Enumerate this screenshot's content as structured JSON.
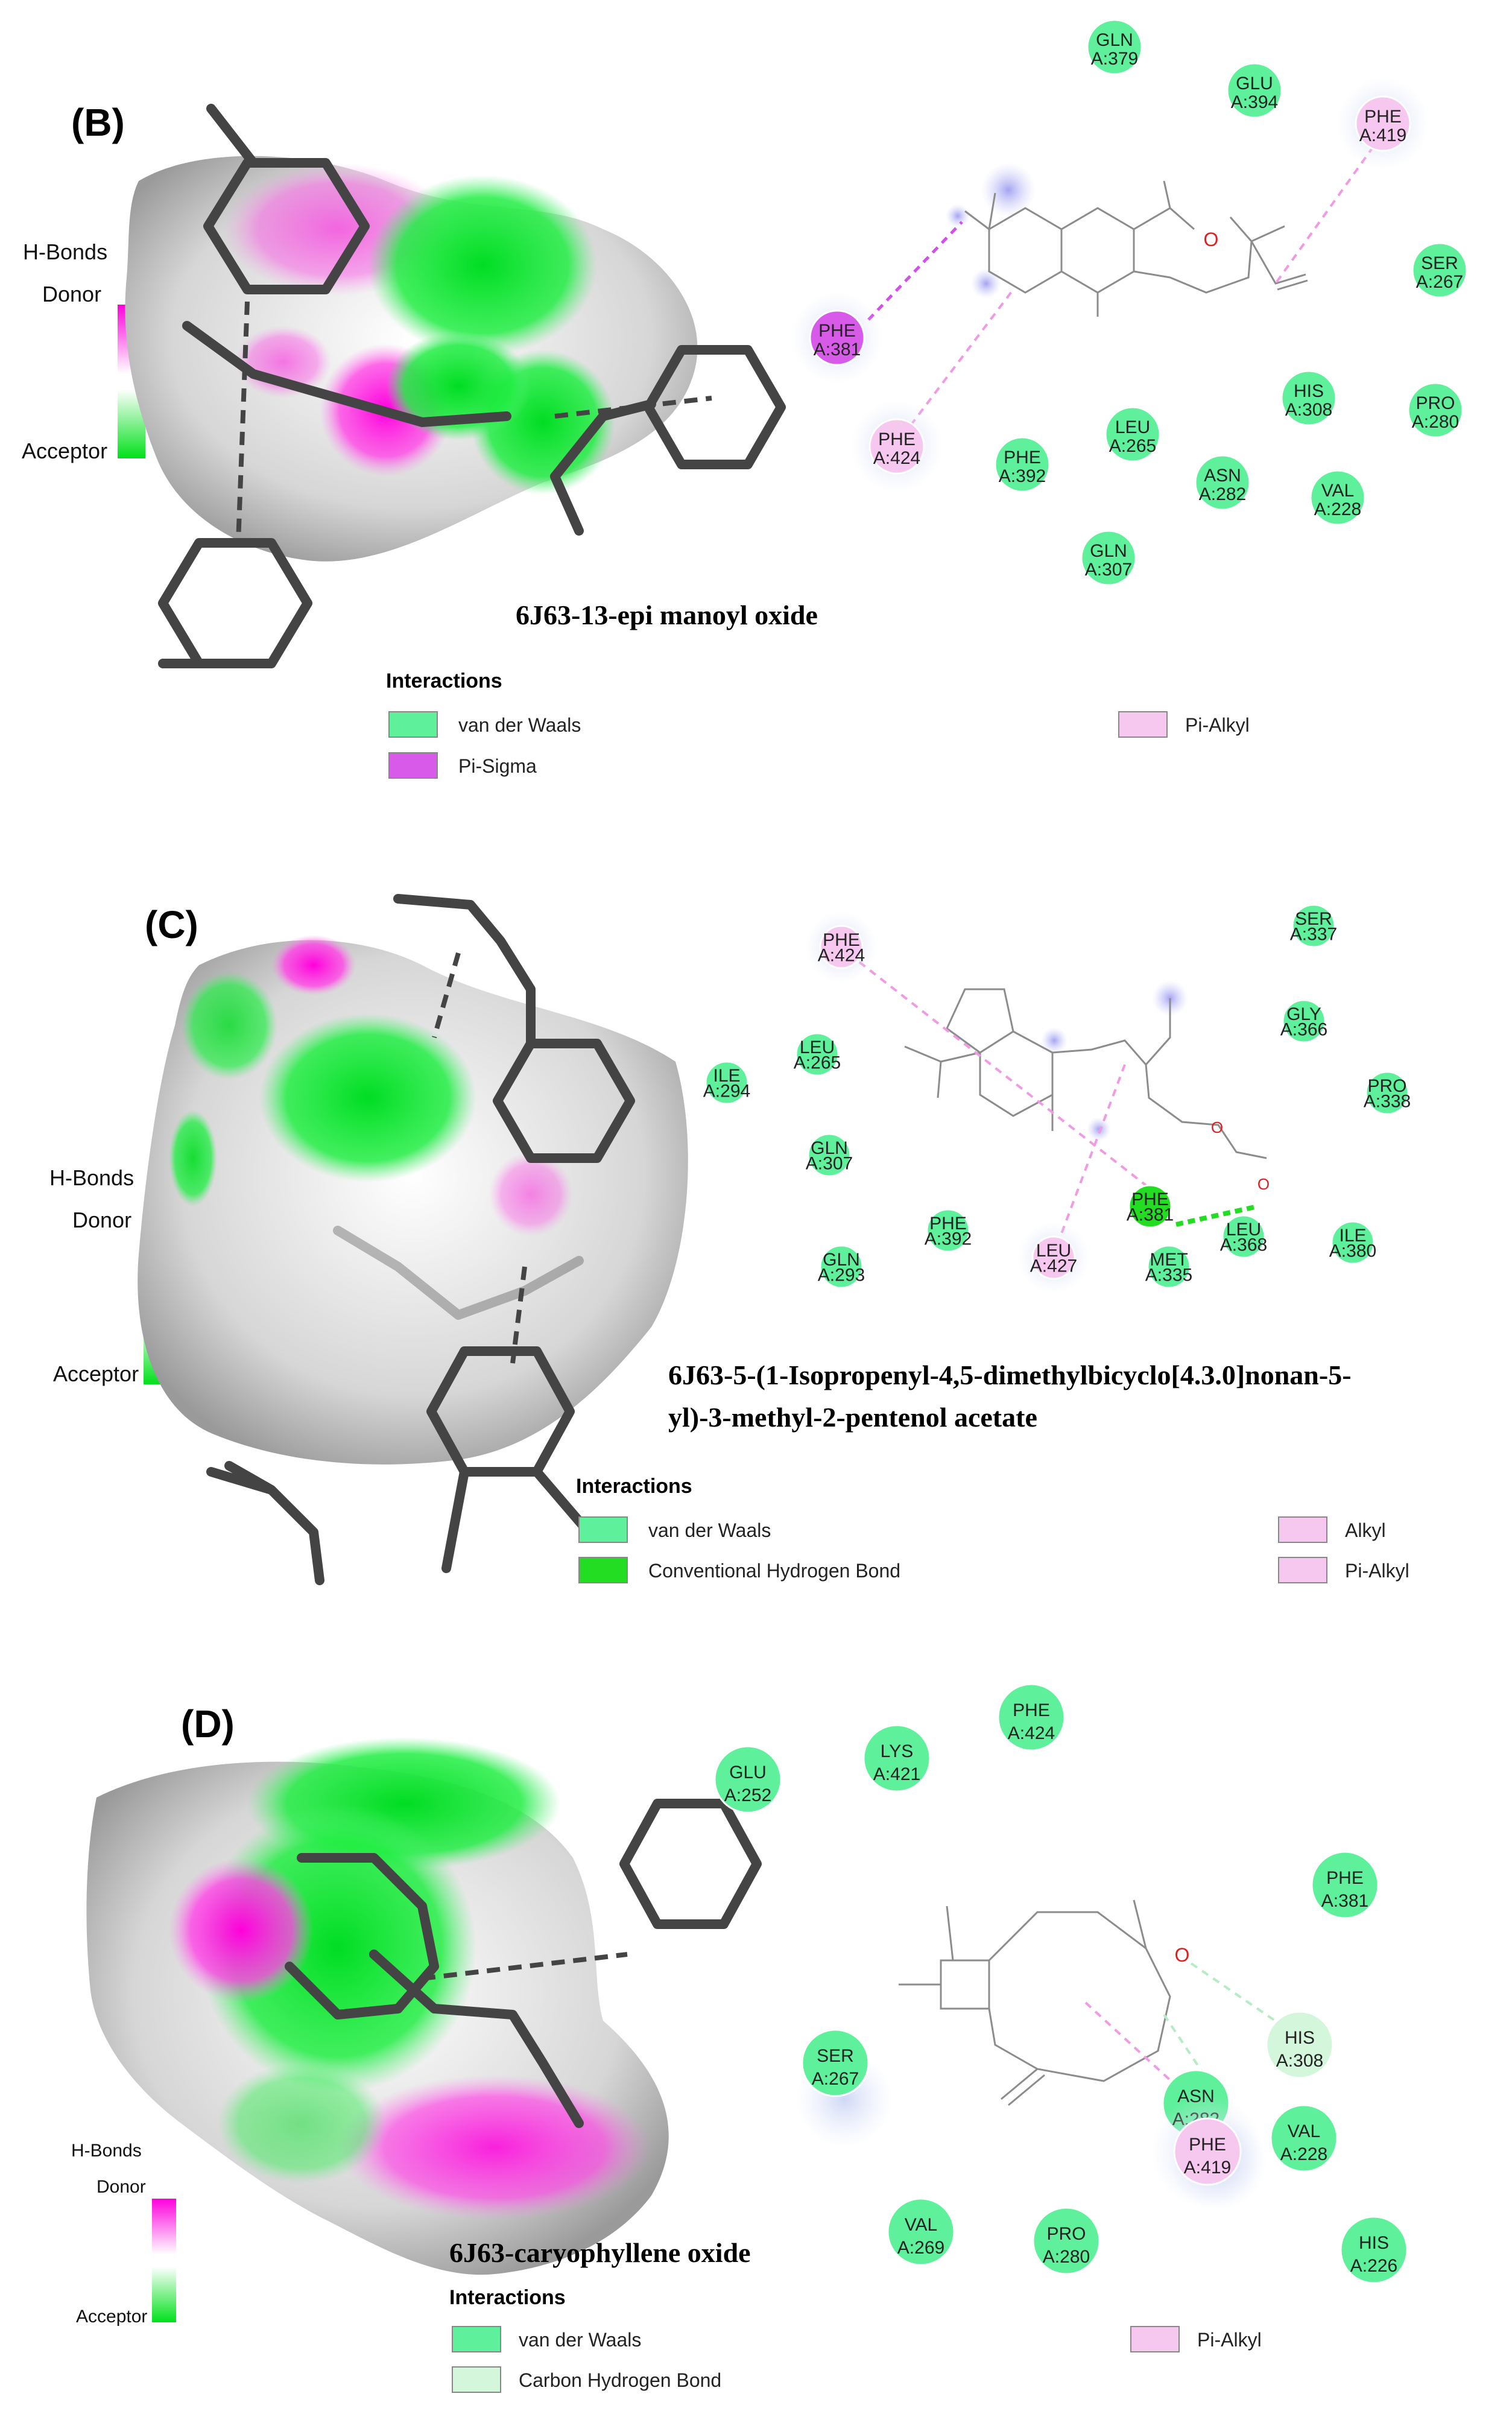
{
  "legend_colors": {
    "van_der_waals": "#5ef09a",
    "pi_sigma": "#d85ae8",
    "pi_alkyl": "#f6c8f0",
    "alkyl": "#f6c8f0",
    "conventional_hbond": "#22dd22",
    "carbon_hbond": "#d4f7dc"
  },
  "hbond_key": {
    "title": "H-Bonds",
    "donor": "Donor",
    "acceptor": "Acceptor"
  },
  "panels": [
    {
      "label": "(B)",
      "compound": "6J63-13-epi manoyl oxide",
      "compound_line2": "",
      "interactions_title": "Interactions",
      "legend": [
        "van der Waals",
        "Pi-Sigma",
        "Pi-Alkyl"
      ],
      "residues": [
        {
          "name": "GLN",
          "id": "A:379",
          "type": "vdw"
        },
        {
          "name": "GLU",
          "id": "A:394",
          "type": "vdw"
        },
        {
          "name": "PHE",
          "id": "A:419",
          "type": "pi_alkyl"
        },
        {
          "name": "SER",
          "id": "A:267",
          "type": "vdw"
        },
        {
          "name": "PHE",
          "id": "A:381",
          "type": "pi_sigma"
        },
        {
          "name": "HIS",
          "id": "A:308",
          "type": "vdw"
        },
        {
          "name": "PRO",
          "id": "A:280",
          "type": "vdw"
        },
        {
          "name": "LEU",
          "id": "A:265",
          "type": "vdw"
        },
        {
          "name": "PHE",
          "id": "A:424",
          "type": "pi_alkyl"
        },
        {
          "name": "PHE",
          "id": "A:392",
          "type": "vdw"
        },
        {
          "name": "ASN",
          "id": "A:282",
          "type": "vdw"
        },
        {
          "name": "VAL",
          "id": "A:228",
          "type": "vdw"
        },
        {
          "name": "GLN",
          "id": "A:307",
          "type": "vdw"
        }
      ],
      "atoms": {
        "oxygen": "O"
      }
    },
    {
      "label": "(C)",
      "compound": "6J63-5-(1-Isopropenyl-4,5-dimethylbicyclo[4.3.0]nonan-5-",
      "compound_line2": "yl)-3-methyl-2-pentenol acetate",
      "interactions_title": "Interactions",
      "legend": [
        "van der Waals",
        "Conventional Hydrogen Bond",
        "Alkyl",
        "Pi-Alkyl"
      ],
      "residues": [
        {
          "name": "PHE",
          "id": "A:424",
          "type": "pi_alkyl"
        },
        {
          "name": "SER",
          "id": "A:337",
          "type": "vdw"
        },
        {
          "name": "GLY",
          "id": "A:366",
          "type": "vdw"
        },
        {
          "name": "ILE",
          "id": "A:294",
          "type": "vdw"
        },
        {
          "name": "LEU",
          "id": "A:265",
          "type": "vdw"
        },
        {
          "name": "PRO",
          "id": "A:338",
          "type": "vdw"
        },
        {
          "name": "GLN",
          "id": "A:307",
          "type": "vdw"
        },
        {
          "name": "PHE",
          "id": "A:381",
          "type": "hbond"
        },
        {
          "name": "PHE",
          "id": "A:392",
          "type": "vdw"
        },
        {
          "name": "LEU",
          "id": "A:427",
          "type": "alkyl"
        },
        {
          "name": "LEU",
          "id": "A:368",
          "type": "vdw"
        },
        {
          "name": "ILE",
          "id": "A:380",
          "type": "vdw"
        },
        {
          "name": "GLN",
          "id": "A:293",
          "type": "vdw"
        },
        {
          "name": "MET",
          "id": "A:335",
          "type": "vdw"
        }
      ],
      "atoms": {
        "oxygen": "O"
      }
    },
    {
      "label": "(D)",
      "compound": "6J63-caryophyllene oxide",
      "compound_line2": "",
      "interactions_title": "Interactions",
      "legend": [
        "van der Waals",
        "Carbon Hydrogen Bond",
        "Pi-Alkyl"
      ],
      "residues": [
        {
          "name": "PHE",
          "id": "A:424",
          "type": "vdw"
        },
        {
          "name": "LYS",
          "id": "A:421",
          "type": "vdw"
        },
        {
          "name": "GLU",
          "id": "A:252",
          "type": "vdw"
        },
        {
          "name": "PHE",
          "id": "A:381",
          "type": "vdw"
        },
        {
          "name": "HIS",
          "id": "A:308",
          "type": "carbon_hbond"
        },
        {
          "name": "SER",
          "id": "A:267",
          "type": "vdw"
        },
        {
          "name": "ASN",
          "id": "A:282",
          "type": "vdw"
        },
        {
          "name": "PHE",
          "id": "A:419",
          "type": "pi_alkyl"
        },
        {
          "name": "VAL",
          "id": "A:228",
          "type": "vdw"
        },
        {
          "name": "VAL",
          "id": "A:269",
          "type": "vdw"
        },
        {
          "name": "PRO",
          "id": "A:280",
          "type": "vdw"
        },
        {
          "name": "HIS",
          "id": "A:226",
          "type": "vdw"
        }
      ],
      "atoms": {
        "oxygen": "O"
      }
    }
  ]
}
